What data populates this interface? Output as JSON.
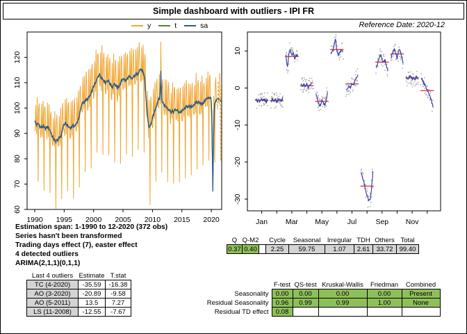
{
  "header": {
    "title": "Simple dashboard with outliers - IPI FR",
    "reference_date": "Reference Date: 2020-12"
  },
  "legend": {
    "items": [
      {
        "label": "y",
        "color": "#F0A632"
      },
      {
        "label": "t",
        "color": "#55803C"
      },
      {
        "label": "sa",
        "color": "#2E5B8A"
      }
    ]
  },
  "summary_lines": [
    "Estimation span: 1-1990 to 12-2020 (372 obs)",
    "Series hasn't been transformed",
    "Trading days effect (7), easter effect",
    "4 detected outliers",
    "ARIMA(2,1,1)(0,1,1)"
  ],
  "outliers_table": {
    "headers": [
      "Last 4 outliers",
      "Estimate",
      "T.stat"
    ],
    "rows": [
      [
        "TC (4-2020)",
        "-35.59",
        "-16.38"
      ],
      [
        "AO (3-2020)",
        "-20.89",
        "-9.58"
      ],
      [
        "AO (5-2011)",
        "13.5",
        "7.27"
      ],
      [
        "LS (11-2008)",
        "-12.55",
        "-7.67"
      ]
    ]
  },
  "q_table": {
    "headers": [
      "Q",
      "Q-M2",
      "",
      "Cycle",
      "Seasonal",
      "Irregular",
      "TDH",
      "Others",
      "Total"
    ],
    "values": [
      "0.37",
      "0.40",
      "",
      "2.25",
      "59.75",
      "1.07",
      "2.61",
      "33.72",
      "99.40"
    ],
    "green_cols": [
      0,
      1
    ],
    "spacer_col": 2
  },
  "seasonality_table": {
    "col_headers": [
      "F-test",
      "QS-test",
      "Kruskal-Wallis",
      "Friedman",
      "Combined"
    ],
    "rows": [
      {
        "label": "Seasonality",
        "values": [
          "0.00",
          "0.00",
          "0.00",
          "0.00",
          "Present"
        ]
      },
      {
        "label": "Residual Seasonality",
        "values": [
          "0.96",
          "0.99",
          "0.99",
          "1.00",
          "None"
        ]
      },
      {
        "label": "Residual TD effect",
        "values": [
          "0.08",
          "",
          "",
          "",
          ""
        ]
      }
    ]
  },
  "colors": {
    "series_y": "#F0A632",
    "series_t": "#55803C",
    "series_sa": "#2E5B8A",
    "subseries_blue": "#3743A6",
    "mean_red": "#E8473F",
    "dots_gray": "#9C9C9C",
    "table_green": "#8EC05A",
    "table_gray": "#D4D4D4"
  },
  "chart_data": [
    {
      "type": "line",
      "title": "",
      "xlabel": "",
      "ylabel": "",
      "x_ticks": [
        1990,
        1995,
        2000,
        2005,
        2010,
        2015,
        2020
      ],
      "y_ticks": [
        60,
        70,
        80,
        90,
        100,
        110,
        120
      ],
      "xlim": [
        1988.7,
        2021.8
      ],
      "ylim": [
        60,
        130
      ],
      "series": [
        {
          "name": "y",
          "style": "solid+forecast-dashed"
        },
        {
          "name": "t",
          "style": "solid"
        },
        {
          "name": "sa",
          "style": "solid+forecast-dashed"
        }
      ],
      "sa_anchors": [
        [
          1990.0,
          95
        ],
        [
          1990.3,
          93.2
        ],
        [
          1990.6,
          94
        ],
        [
          1991.0,
          92.3
        ],
        [
          1991.4,
          92.8
        ],
        [
          1991.8,
          91.8
        ],
        [
          1992.2,
          92.6
        ],
        [
          1992.6,
          91.2
        ],
        [
          1993.0,
          88.6
        ],
        [
          1993.5,
          86.8
        ],
        [
          1994.0,
          87.6
        ],
        [
          1994.5,
          89.2
        ],
        [
          1994.9,
          93.5
        ],
        [
          1995.3,
          93.8
        ],
        [
          1995.7,
          92.6
        ],
        [
          1996.1,
          92.2
        ],
        [
          1996.5,
          92.9
        ],
        [
          1997.0,
          93.3
        ],
        [
          1997.5,
          96.2
        ],
        [
          1998.0,
          101.6
        ],
        [
          1998.5,
          102.8
        ],
        [
          1999.0,
          103.4
        ],
        [
          1999.5,
          105.2
        ],
        [
          2000.0,
          108.6
        ],
        [
          2000.4,
          110
        ],
        [
          2000.7,
          112.6
        ],
        [
          2001.0,
          113.2
        ],
        [
          2001.5,
          111.6
        ],
        [
          2002.0,
          110.2
        ],
        [
          2002.4,
          111
        ],
        [
          2002.8,
          109.6
        ],
        [
          2003.2,
          108.2
        ],
        [
          2003.5,
          109.8
        ],
        [
          2004.0,
          107.9
        ],
        [
          2004.5,
          109.2
        ],
        [
          2005.0,
          111.9
        ],
        [
          2005.4,
          110.6
        ],
        [
          2006.0,
          112.4
        ],
        [
          2006.5,
          111.4
        ],
        [
          2007.0,
          112.9
        ],
        [
          2007.5,
          113.6
        ],
        [
          2007.9,
          115.4
        ],
        [
          2008.3,
          114.6
        ],
        [
          2008.7,
          111.5
        ],
        [
          2009.0,
          101
        ],
        [
          2009.3,
          93.5
        ],
        [
          2009.5,
          92.2
        ],
        [
          2009.8,
          94.2
        ],
        [
          2010.2,
          97.6
        ],
        [
          2010.6,
          100.2
        ],
        [
          2011.0,
          103.8
        ],
        [
          2011.3,
          103.6
        ],
        [
          2011.42,
          115.2
        ],
        [
          2011.55,
          103.2
        ],
        [
          2012.0,
          101.2
        ],
        [
          2012.5,
          100.2
        ],
        [
          2013.0,
          98.8
        ],
        [
          2013.5,
          98.4
        ],
        [
          2014.0,
          99.4
        ],
        [
          2014.5,
          98.4
        ],
        [
          2015.0,
          98.7
        ],
        [
          2015.5,
          99.9
        ],
        [
          2016.0,
          100.9
        ],
        [
          2016.5,
          100.2
        ],
        [
          2017.0,
          101.4
        ],
        [
          2017.5,
          102.1
        ],
        [
          2018.0,
          102.4
        ],
        [
          2018.5,
          101.4
        ],
        [
          2019.0,
          103.4
        ],
        [
          2019.5,
          103.9
        ],
        [
          2019.92,
          104.4
        ],
        [
          2020.08,
          99
        ],
        [
          2020.25,
          67
        ],
        [
          2020.42,
          95
        ],
        [
          2020.58,
          101.8
        ],
        [
          2020.75,
          102.3
        ],
        [
          2020.917,
          103.2
        ],
        [
          2021.2,
          103.6
        ],
        [
          2021.5,
          103.1
        ],
        [
          2021.75,
          102.6
        ]
      ],
      "seasonal_by_month": [
        -3.3,
        -3.4,
        8.5,
        0.6,
        -3.6,
        10.4,
        1.1,
        -26.5,
        7.0,
        9.2,
        2.7,
        -0.7
      ],
      "data_start": "1-1990",
      "data_end": "12-2020",
      "n_obs": 372,
      "forecast_end": 2021.75
    },
    {
      "type": "seasonal_subseries",
      "months": [
        "Jan",
        "Feb",
        "Mar",
        "Apr",
        "May",
        "Jun",
        "Jul",
        "Aug",
        "Sep",
        "Oct",
        "Nov",
        "Dec"
      ],
      "x_tick_labels": [
        "Jan",
        "Mar",
        "May",
        "Jul",
        "Sep",
        "Nov"
      ],
      "y_ticks": [
        10,
        0,
        -10,
        -20,
        -30
      ],
      "ylim": [
        -33,
        15
      ],
      "means": [
        -3.3,
        -3.4,
        8.5,
        0.6,
        -3.6,
        10.4,
        1.1,
        -26.5,
        7.0,
        9.2,
        2.7,
        -0.7
      ],
      "shapes": [
        [
          0.3,
          -0.4,
          0.2,
          -0.3,
          0.4,
          -0.2,
          0.3,
          -0.5,
          0.2
        ],
        [
          -0.3,
          0.4,
          -0.2,
          0.3,
          -0.4,
          0.2,
          0.4,
          -0.2,
          0.7
        ],
        [
          0.4,
          -3.3,
          0.9,
          1.9,
          0.4,
          1.0,
          -0.7,
          0.5,
          0.2
        ],
        [
          0.5,
          -0.4,
          0.4,
          -0.3,
          0.5,
          -0.5,
          0.3,
          0.7,
          1.0
        ],
        [
          2.2,
          0.6,
          -0.9,
          -1.1,
          0.4,
          -0.6,
          -1.1,
          0.6,
          2.5
        ],
        [
          -1.1,
          -0.4,
          0.7,
          2.9,
          -0.6,
          -1.4,
          -0.9,
          0.3,
          -0.6
        ],
        [
          -1.9,
          -1.3,
          -0.6,
          -1.0,
          0.2,
          -0.6,
          0.9,
          1.8,
          2.5
        ],
        [
          3.7,
          2.3,
          0.9,
          -1.0,
          -2.4,
          -3.6,
          -4.0,
          -1.2,
          4.1
        ],
        [
          -1.6,
          -0.4,
          1.2,
          1.9,
          0.8,
          -0.2,
          0.6,
          -1.1,
          -2.2
        ],
        [
          -1.0,
          0.6,
          1.3,
          0.4,
          -1.2,
          0.8,
          1.2,
          -0.6,
          -2.6
        ],
        [
          0.3,
          -0.5,
          0.4,
          0.6,
          -0.4,
          0.3,
          -0.5,
          0.4,
          -0.3
        ],
        [
          3.4,
          2.6,
          1.8,
          1.0,
          0.2,
          -0.8,
          -1.8,
          -3.0,
          -4.6
        ]
      ],
      "years_per_month": 31
    }
  ]
}
